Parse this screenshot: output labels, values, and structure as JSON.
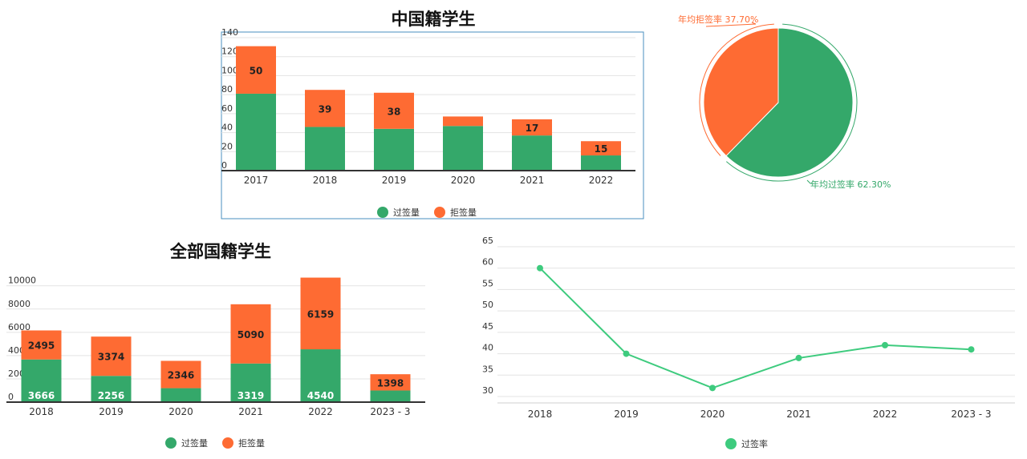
{
  "colors": {
    "pass": "#34a86a",
    "reject": "#fe6b33",
    "rate_line": "#3ecb7e",
    "axis": "#333333",
    "grid": "#e3e3e3",
    "frame": "#4a8fbf"
  },
  "chart_data": [
    {
      "id": "cn",
      "type": "bar",
      "stacked": true,
      "title": "中国籍学生",
      "categories": [
        "2017",
        "2018",
        "2019",
        "2020",
        "2021",
        "2022"
      ],
      "series": [
        {
          "name": "过签量",
          "values": [
            81,
            46,
            44,
            47,
            37,
            16
          ]
        },
        {
          "name": "拒签量",
          "values": [
            50,
            39,
            38,
            10,
            17,
            15
          ]
        }
      ],
      "data_labels": {
        "拒签量": [
          "50",
          "39",
          "38",
          "",
          "17",
          "15"
        ]
      },
      "y_ticks": [
        0,
        20,
        40,
        60,
        80,
        100,
        120,
        140
      ],
      "ylim": [
        0,
        140
      ],
      "legend": "bottom"
    },
    {
      "id": "pie",
      "type": "pie",
      "slices": [
        {
          "name": "年均过签率",
          "value": 62.3,
          "label": "年均过签率 62.30%"
        },
        {
          "name": "年均拒签率",
          "value": 37.7,
          "label": "年均拒签率 37.70%"
        }
      ]
    },
    {
      "id": "all",
      "type": "bar",
      "stacked": true,
      "title": "全部国籍学生",
      "categories": [
        "2018",
        "2019",
        "2020",
        "2021",
        "2022",
        "2023 - 3"
      ],
      "series": [
        {
          "name": "过签量",
          "values": [
            3666,
            2256,
            1200,
            3319,
            4540,
            1000
          ]
        },
        {
          "name": "拒签量",
          "values": [
            2495,
            3374,
            2346,
            5090,
            6159,
            1398
          ]
        }
      ],
      "data_labels": {
        "过签量": [
          "3666",
          "2256",
          "",
          "3319",
          "4540",
          ""
        ],
        "拒签量": [
          "2495",
          "3374",
          "2346",
          "5090",
          "6159",
          "1398"
        ]
      },
      "y_ticks": [
        0,
        2000,
        4000,
        6000,
        8000,
        10000
      ],
      "ylim": [
        0,
        10600
      ],
      "legend": "bottom"
    },
    {
      "id": "rate",
      "type": "line",
      "categories": [
        "2018",
        "2019",
        "2020",
        "2021",
        "2022",
        "2023 - 3"
      ],
      "series": [
        {
          "name": "过签率",
          "values": [
            60,
            40,
            32,
            39,
            42,
            41
          ]
        }
      ],
      "y_ticks": [
        30,
        35,
        40,
        45,
        50,
        55,
        60,
        65
      ],
      "ylim": [
        30,
        65
      ],
      "legend": "bottom"
    }
  ]
}
